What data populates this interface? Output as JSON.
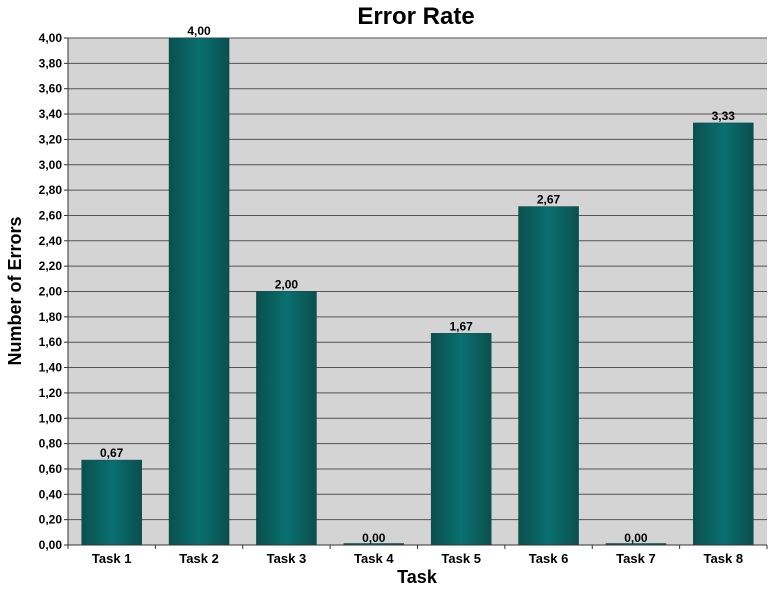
{
  "chart_data": {
    "type": "bar",
    "title": "Error Rate",
    "xlabel": "Task",
    "ylabel": "Number of Errors",
    "categories": [
      "Task 1",
      "Task 2",
      "Task 3",
      "Task 4",
      "Task 5",
      "Task 6",
      "Task 7",
      "Task 8"
    ],
    "values": [
      0.67,
      4.0,
      2.0,
      0.0,
      1.67,
      2.67,
      0.0,
      3.33
    ],
    "value_labels": [
      "0,67",
      "4,00",
      "2,00",
      "0,00",
      "1,67",
      "2,67",
      "0,00",
      "3,33"
    ],
    "ylim": [
      0,
      4.0
    ],
    "yticks": [
      0,
      0.2,
      0.4,
      0.6,
      0.8,
      1.0,
      1.2,
      1.4,
      1.6,
      1.8,
      2.0,
      2.2,
      2.4,
      2.6,
      2.8,
      3.0,
      3.2,
      3.4,
      3.6,
      3.8,
      4.0
    ],
    "ytick_labels": [
      "0,00",
      "0,20",
      "0,40",
      "0,60",
      "0,80",
      "1,00",
      "1,20",
      "1,40",
      "1,60",
      "1,80",
      "2,00",
      "2,20",
      "2,40",
      "2,60",
      "2,80",
      "3,00",
      "3,20",
      "3,40",
      "3,60",
      "3,80",
      "4,00"
    ],
    "grid": true,
    "legend": "none",
    "colors": {
      "bar_dark": "#0b4f4f",
      "bar_light": "#0a7070",
      "plot_background": "#d4d4d4",
      "gridline": "#555555"
    }
  }
}
